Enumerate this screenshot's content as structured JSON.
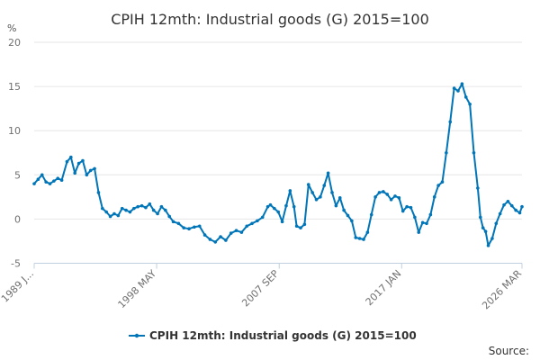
{
  "chart_data": {
    "type": "line",
    "title": "CPIH 12mth: Industrial goods (G) 2015=100",
    "ylabel": "%",
    "ylim": [
      -5,
      20
    ],
    "yticks": [
      -5,
      0,
      5,
      10,
      15,
      20
    ],
    "xlim": [
      1989.0,
      2026.17
    ],
    "xtick_labels": [
      "1989 J...",
      "1998 MAY",
      "2007 SEP",
      "2017 JAN",
      "2026 MAR"
    ],
    "xtick_positions": [
      1989.0,
      1998.33,
      2007.67,
      2017.0,
      2026.17
    ],
    "source": "Source:",
    "colors": {
      "series": "#0075b8"
    },
    "series": [
      {
        "name": "CPIH 12mth: Industrial goods (G) 2015=100",
        "x": [
          1989.0,
          1989.3,
          1989.6,
          1989.9,
          1990.2,
          1990.5,
          1990.8,
          1991.1,
          1991.5,
          1991.8,
          1992.1,
          1992.4,
          1992.7,
          1993.0,
          1993.3,
          1993.6,
          1993.9,
          1994.2,
          1994.5,
          1994.8,
          1995.1,
          1995.4,
          1995.7,
          1996.0,
          1996.3,
          1996.6,
          1996.9,
          1997.2,
          1997.5,
          1997.8,
          1998.1,
          1998.4,
          1998.7,
          1999.0,
          1999.3,
          1999.6,
          2000.0,
          2000.4,
          2000.8,
          2001.2,
          2001.6,
          2002.0,
          2002.4,
          2002.8,
          2003.2,
          2003.6,
          2004.0,
          2004.4,
          2004.8,
          2005.2,
          2005.6,
          2006.0,
          2006.4,
          2006.8,
          2007.0,
          2007.3,
          2007.6,
          2007.9,
          2008.2,
          2008.5,
          2008.8,
          2009.0,
          2009.3,
          2009.6,
          2009.9,
          2010.2,
          2010.5,
          2010.8,
          2011.1,
          2011.4,
          2011.7,
          2012.0,
          2012.3,
          2012.6,
          2012.9,
          2013.2,
          2013.5,
          2013.8,
          2014.1,
          2014.4,
          2014.7,
          2015.0,
          2015.3,
          2015.6,
          2015.9,
          2016.2,
          2016.5,
          2016.8,
          2017.1,
          2017.4,
          2017.7,
          2018.0,
          2018.3,
          2018.6,
          2018.9,
          2019.2,
          2019.5,
          2019.8,
          2020.1,
          2020.4,
          2020.7,
          2021.0,
          2021.3,
          2021.6,
          2021.9,
          2022.2,
          2022.5,
          2022.8,
          2023.0,
          2023.2,
          2023.4,
          2023.6,
          2023.9,
          2024.2,
          2024.5,
          2024.8,
          2025.1,
          2025.4,
          2025.7,
          2026.0,
          2026.17
        ],
        "values": [
          4.0,
          4.5,
          5.0,
          4.2,
          4.0,
          4.3,
          4.6,
          4.4,
          6.5,
          7.0,
          5.2,
          6.3,
          6.6,
          5.0,
          5.5,
          5.7,
          3.0,
          1.2,
          0.8,
          0.3,
          0.6,
          0.4,
          1.2,
          1.0,
          0.8,
          1.2,
          1.4,
          1.5,
          1.3,
          1.7,
          1.0,
          0.6,
          1.4,
          1.0,
          0.3,
          -0.3,
          -0.5,
          -1.0,
          -1.1,
          -0.9,
          -0.8,
          -1.8,
          -2.3,
          -2.6,
          -2.0,
          -2.4,
          -1.6,
          -1.3,
          -1.5,
          -0.8,
          -0.5,
          -0.2,
          0.2,
          1.4,
          1.6,
          1.2,
          0.8,
          -0.3,
          1.5,
          3.2,
          1.4,
          -0.8,
          -1.0,
          -0.6,
          3.9,
          3.0,
          2.2,
          2.5,
          3.8,
          5.2,
          3.0,
          1.5,
          2.4,
          1.0,
          0.4,
          -0.2,
          -2.1,
          -2.2,
          -2.3,
          -1.5,
          0.5,
          2.5,
          3.0,
          3.1,
          2.8,
          2.2,
          2.6,
          2.4,
          0.9,
          1.4,
          1.3,
          0.2,
          -1.5,
          -0.4,
          -0.5,
          0.5,
          2.5,
          3.8,
          4.2,
          7.5,
          11.0,
          14.8,
          14.5,
          15.3,
          13.8,
          13.0,
          7.5,
          3.5,
          0.2,
          -1.0,
          -1.4,
          -3.0,
          -2.2,
          -0.5,
          0.6,
          1.6,
          2.0,
          1.5,
          1.0,
          0.7,
          1.4
        ]
      }
    ]
  }
}
